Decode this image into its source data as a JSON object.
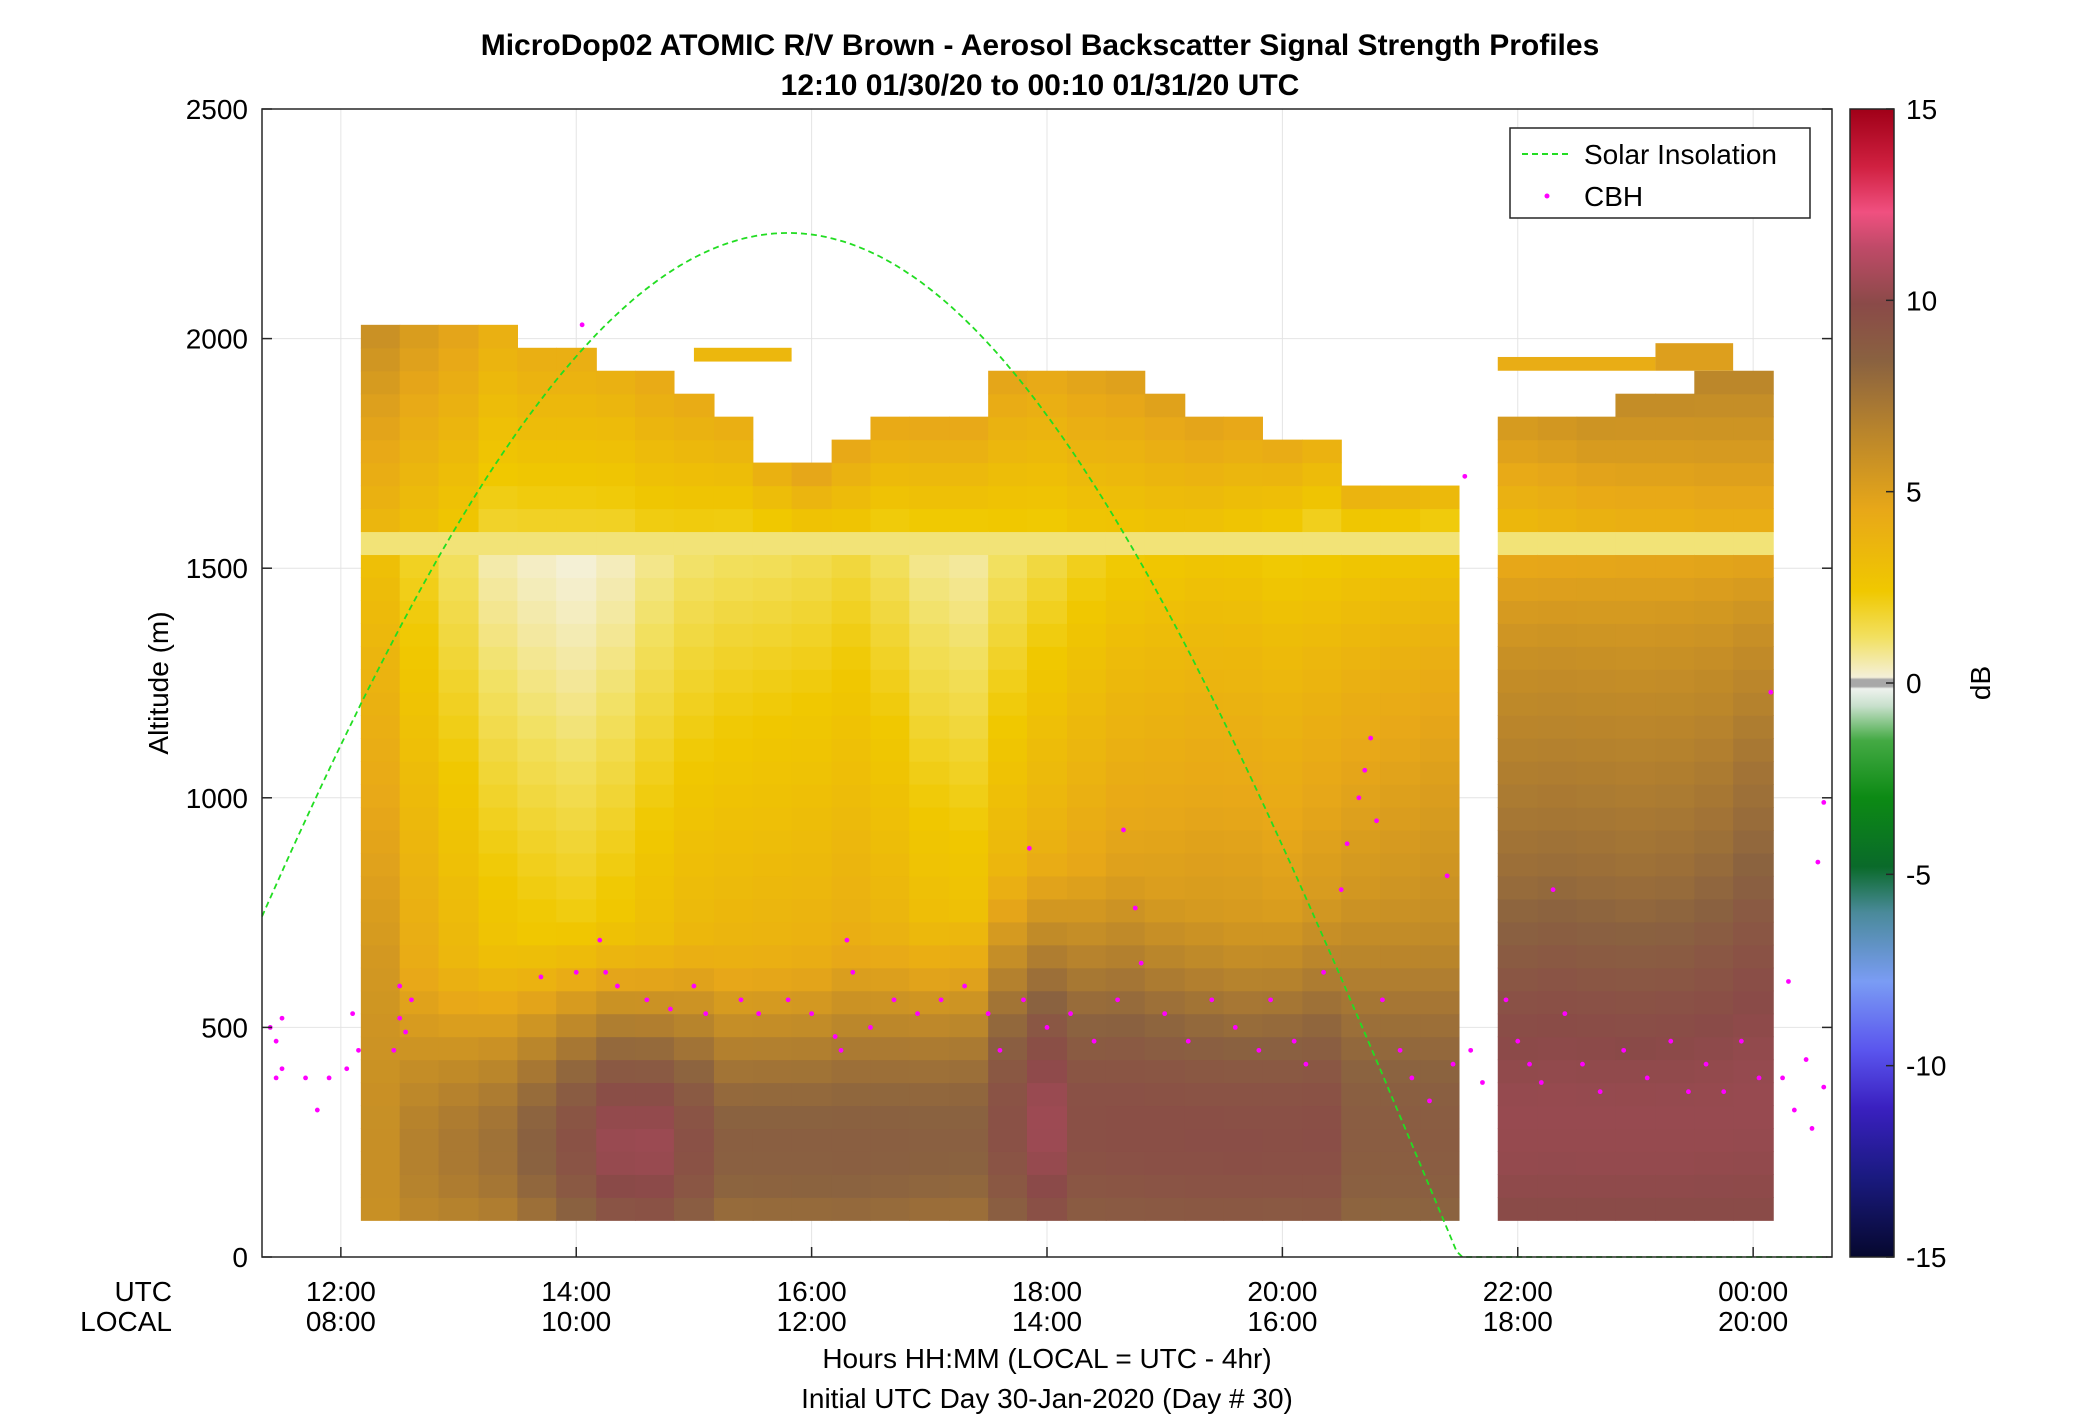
{
  "chart_data": {
    "type": "heatmap",
    "title": "MicroDop02 ATOMIC R/V Brown - Aerosol Backscatter Signal Strength Profiles",
    "subtitle": "12:10 01/30/20 to 00:10 01/31/20  UTC",
    "ylabel": "Altitude (m)",
    "xlabel": "Hours HH:MM  (LOCAL = UTC - 4hr)",
    "xlabel2": "Initial UTC Day 30-Jan-2020 (Day # 30)",
    "x_row_labels": [
      "UTC",
      "LOCAL"
    ],
    "xlim_hours": [
      11.33,
      24.67
    ],
    "ylim": [
      0,
      2500
    ],
    "grid": true,
    "y_ticks": [
      0,
      500,
      1000,
      1500,
      2000,
      2500
    ],
    "x_ticks": [
      {
        "hour": 12,
        "utc": "12:00",
        "local": "08:00"
      },
      {
        "hour": 14,
        "utc": "14:00",
        "local": "10:00"
      },
      {
        "hour": 16,
        "utc": "16:00",
        "local": "12:00"
      },
      {
        "hour": 18,
        "utc": "18:00",
        "local": "14:00"
      },
      {
        "hour": 20,
        "utc": "20:00",
        "local": "16:00"
      },
      {
        "hour": 22,
        "utc": "22:00",
        "local": "18:00"
      },
      {
        "hour": 24,
        "utc": "00:00",
        "local": "20:00"
      }
    ],
    "colorbar": {
      "label": "dB",
      "range": [
        -15,
        15
      ],
      "ticks": [
        -15,
        -10,
        -5,
        0,
        5,
        10,
        15
      ]
    },
    "legend": {
      "position": "top-right",
      "entries": [
        {
          "name": "Solar Insolation",
          "style": "dashed-line",
          "color": "#22dd22"
        },
        {
          "name": "CBH",
          "style": "dot",
          "color": "#ff00ff"
        }
      ]
    },
    "range_gate_bottom_m": 80,
    "range_gate_m": 50,
    "time_bins": [
      {
        "t0": 12.17,
        "t1": 12.5,
        "top": 2000,
        "sfc": 6,
        "pblh": 620,
        "lo": 3,
        "layer": 2.5
      },
      {
        "t0": 12.5,
        "t1": 12.83,
        "top": 2030,
        "sfc": 7,
        "pblh": 640,
        "lo": 1.8,
        "layer": 2.0
      },
      {
        "t0": 12.83,
        "t1": 13.17,
        "top": 2030,
        "sfc": 7.5,
        "pblh": 660,
        "lo": 1.0,
        "layer": 1.5
      },
      {
        "t0": 13.17,
        "t1": 13.5,
        "top": 2030,
        "sfc": 8,
        "pblh": 680,
        "lo": 0.3,
        "layer": 0.8
      },
      {
        "t0": 13.5,
        "t1": 13.83,
        "top": 1960,
        "sfc": 9,
        "pblh": 700,
        "lo": 0.0,
        "layer": 0.8
      },
      {
        "t0": 13.83,
        "t1": 14.17,
        "top": 1960,
        "sfc": 10,
        "pblh": 720,
        "lo": -0.2,
        "layer": 0.8
      },
      {
        "t0": 14.17,
        "t1": 14.5,
        "top": 1930,
        "sfc": 11,
        "pblh": 720,
        "lo": 0.1,
        "layer": 0.8
      },
      {
        "t0": 14.5,
        "t1": 14.83,
        "top": 1900,
        "sfc": 11,
        "pblh": 700,
        "lo": 0.6,
        "layer": 1.0
      },
      {
        "t0": 14.83,
        "t1": 15.17,
        "top": 1860,
        "sfc": 10,
        "pblh": 700,
        "lo": 1.0,
        "layer": 1.0
      },
      {
        "t0": 15.17,
        "t1": 15.5,
        "top": 1820,
        "sfc": 9,
        "pblh": 680,
        "lo": 1.2,
        "layer": 0.9
      },
      {
        "t0": 15.5,
        "t1": 15.83,
        "top": 1720,
        "sfc": 9,
        "pblh": 680,
        "lo": 1.3,
        "layer": 0.8
      },
      {
        "t0": 15.83,
        "t1": 16.17,
        "top": 1690,
        "sfc": 9,
        "pblh": 680,
        "lo": 1.4,
        "layer": 1.0
      },
      {
        "t0": 16.17,
        "t1": 16.5,
        "top": 1760,
        "sfc": 9,
        "pblh": 700,
        "lo": 1.6,
        "layer": 1.2
      },
      {
        "t0": 16.5,
        "t1": 16.83,
        "top": 1790,
        "sfc": 9,
        "pblh": 720,
        "lo": 1.2,
        "layer": 0.9
      },
      {
        "t0": 16.83,
        "t1": 17.17,
        "top": 1790,
        "sfc": 9,
        "pblh": 740,
        "lo": 0.6,
        "layer": 1.0
      },
      {
        "t0": 17.17,
        "t1": 17.5,
        "top": 1790,
        "sfc": 9,
        "pblh": 760,
        "lo": 0.4,
        "layer": 1.0
      },
      {
        "t0": 17.5,
        "t1": 17.83,
        "top": 1890,
        "sfc": 10,
        "pblh": 860,
        "lo": 1.0,
        "layer": 1.2
      },
      {
        "t0": 17.83,
        "t1": 18.17,
        "top": 1920,
        "sfc": 11,
        "pblh": 880,
        "lo": 1.5,
        "layer": 1.2
      },
      {
        "t0": 18.17,
        "t1": 18.5,
        "top": 1920,
        "sfc": 10,
        "pblh": 860,
        "lo": 2.0,
        "layer": 1.5
      },
      {
        "t0": 18.5,
        "t1": 18.83,
        "top": 1890,
        "sfc": 10,
        "pblh": 850,
        "lo": 2.4,
        "layer": 1.5
      },
      {
        "t0": 18.83,
        "t1": 19.17,
        "top": 1860,
        "sfc": 10,
        "pblh": 800,
        "lo": 2.6,
        "layer": 1.6
      },
      {
        "t0": 19.17,
        "t1": 19.5,
        "top": 1830,
        "sfc": 10,
        "pblh": 760,
        "lo": 2.8,
        "layer": 1.6
      },
      {
        "t0": 19.5,
        "t1": 19.83,
        "top": 1830,
        "sfc": 10,
        "pblh": 740,
        "lo": 2.8,
        "layer": 1.4
      },
      {
        "t0": 19.83,
        "t1": 20.17,
        "top": 1760,
        "sfc": 10,
        "pblh": 760,
        "lo": 2.6,
        "layer": 1.0
      },
      {
        "t0": 20.17,
        "t1": 20.5,
        "top": 1760,
        "sfc": 10,
        "pblh": 780,
        "lo": 2.8,
        "layer": 0.6
      },
      {
        "t0": 20.5,
        "t1": 20.83,
        "top": 1660,
        "sfc": 9,
        "pblh": 800,
        "lo": 3.0,
        "layer": 0.5
      },
      {
        "t0": 20.83,
        "t1": 21.17,
        "top": 1660,
        "sfc": 9,
        "pblh": 780,
        "lo": 3.2,
        "layer": 0.4
      },
      {
        "t0": 21.17,
        "t1": 21.5,
        "top": 1660,
        "sfc": 9,
        "pblh": 760,
        "lo": 3.4,
        "layer": 0.2
      },
      {
        "t0": 21.83,
        "t1": 22.17,
        "top": 1830,
        "sfc": 10.5,
        "pblh": 900,
        "lo": 5,
        "layer": 2.2
      },
      {
        "t0": 22.17,
        "t1": 22.5,
        "top": 1830,
        "sfc": 10.5,
        "pblh": 920,
        "lo": 5,
        "layer": 2.4
      },
      {
        "t0": 22.5,
        "t1": 22.83,
        "top": 1830,
        "sfc": 10.5,
        "pblh": 900,
        "lo": 5,
        "layer": 2.6
      },
      {
        "t0": 22.83,
        "t1": 23.17,
        "top": 1860,
        "sfc": 10.5,
        "pblh": 880,
        "lo": 5,
        "layer": 2.8
      },
      {
        "t0": 23.17,
        "t1": 23.5,
        "top": 1860,
        "sfc": 10.5,
        "pblh": 900,
        "lo": 5,
        "layer": 2.8
      },
      {
        "t0": 23.5,
        "t1": 23.83,
        "top": 1890,
        "sfc": 10.5,
        "pblh": 950,
        "lo": 5,
        "layer": 3.0
      },
      {
        "t0": 23.83,
        "t1": 24.17,
        "top": 1890,
        "sfc": 10.5,
        "pblh": 1050,
        "lo": 5,
        "layer": 3.0
      }
    ],
    "elevated_segments": [
      {
        "t0": 15.0,
        "t1": 15.83,
        "alt0": 1950,
        "alt1": 1980,
        "value": 3.5
      },
      {
        "t0": 21.83,
        "t1": 23.17,
        "alt0": 1930,
        "alt1": 1960,
        "value": 4.2
      },
      {
        "t0": 23.17,
        "t1": 23.83,
        "alt0": 1930,
        "alt1": 1990,
        "value": 5
      }
    ],
    "solar_insolation": {
      "rise_hour": 10.1,
      "peak_hour": 15.83,
      "set_hour": 21.5,
      "peak_altitude": 2230
    },
    "cbh_points": [
      {
        "t": 11.4,
        "alt": 500
      },
      {
        "t": 11.45,
        "alt": 470
      },
      {
        "t": 11.5,
        "alt": 520
      },
      {
        "t": 11.5,
        "alt": 410
      },
      {
        "t": 11.45,
        "alt": 390
      },
      {
        "t": 11.7,
        "alt": 390
      },
      {
        "t": 11.8,
        "alt": 320
      },
      {
        "t": 11.9,
        "alt": 390
      },
      {
        "t": 12.05,
        "alt": 410
      },
      {
        "t": 12.1,
        "alt": 530
      },
      {
        "t": 12.15,
        "alt": 450
      },
      {
        "t": 12.5,
        "alt": 520
      },
      {
        "t": 12.55,
        "alt": 490
      },
      {
        "t": 12.6,
        "alt": 560
      },
      {
        "t": 12.45,
        "alt": 450
      },
      {
        "t": 12.5,
        "alt": 590
      },
      {
        "t": 14.05,
        "alt": 2030
      },
      {
        "t": 14.0,
        "alt": 620
      },
      {
        "t": 13.7,
        "alt": 610
      },
      {
        "t": 14.2,
        "alt": 690
      },
      {
        "t": 14.25,
        "alt": 620
      },
      {
        "t": 14.35,
        "alt": 590
      },
      {
        "t": 14.6,
        "alt": 560
      },
      {
        "t": 14.8,
        "alt": 540
      },
      {
        "t": 15.0,
        "alt": 590
      },
      {
        "t": 15.1,
        "alt": 530
      },
      {
        "t": 15.4,
        "alt": 560
      },
      {
        "t": 15.55,
        "alt": 530
      },
      {
        "t": 15.8,
        "alt": 560
      },
      {
        "t": 16.0,
        "alt": 530
      },
      {
        "t": 16.2,
        "alt": 480
      },
      {
        "t": 16.3,
        "alt": 690
      },
      {
        "t": 16.35,
        "alt": 620
      },
      {
        "t": 16.25,
        "alt": 450
      },
      {
        "t": 16.5,
        "alt": 500
      },
      {
        "t": 16.7,
        "alt": 560
      },
      {
        "t": 16.9,
        "alt": 530
      },
      {
        "t": 17.1,
        "alt": 560
      },
      {
        "t": 17.3,
        "alt": 590
      },
      {
        "t": 17.5,
        "alt": 530
      },
      {
        "t": 17.6,
        "alt": 450
      },
      {
        "t": 17.85,
        "alt": 890
      },
      {
        "t": 17.8,
        "alt": 560
      },
      {
        "t": 18.0,
        "alt": 500
      },
      {
        "t": 18.2,
        "alt": 530
      },
      {
        "t": 18.4,
        "alt": 470
      },
      {
        "t": 18.6,
        "alt": 560
      },
      {
        "t": 18.65,
        "alt": 930
      },
      {
        "t": 18.75,
        "alt": 760
      },
      {
        "t": 18.8,
        "alt": 640
      },
      {
        "t": 19.0,
        "alt": 530
      },
      {
        "t": 19.2,
        "alt": 470
      },
      {
        "t": 19.4,
        "alt": 560
      },
      {
        "t": 19.6,
        "alt": 500
      },
      {
        "t": 19.8,
        "alt": 450
      },
      {
        "t": 19.9,
        "alt": 560
      },
      {
        "t": 20.1,
        "alt": 470
      },
      {
        "t": 20.2,
        "alt": 420
      },
      {
        "t": 20.35,
        "alt": 620
      },
      {
        "t": 20.5,
        "alt": 800
      },
      {
        "t": 20.55,
        "alt": 900
      },
      {
        "t": 20.65,
        "alt": 1000
      },
      {
        "t": 20.7,
        "alt": 1060
      },
      {
        "t": 20.75,
        "alt": 1130
      },
      {
        "t": 20.8,
        "alt": 950
      },
      {
        "t": 20.85,
        "alt": 560
      },
      {
        "t": 21.0,
        "alt": 450
      },
      {
        "t": 21.1,
        "alt": 390
      },
      {
        "t": 21.25,
        "alt": 340
      },
      {
        "t": 21.4,
        "alt": 830
      },
      {
        "t": 21.45,
        "alt": 420
      },
      {
        "t": 21.55,
        "alt": 1700
      },
      {
        "t": 21.6,
        "alt": 450
      },
      {
        "t": 21.7,
        "alt": 380
      },
      {
        "t": 21.9,
        "alt": 560
      },
      {
        "t": 22.0,
        "alt": 470
      },
      {
        "t": 22.1,
        "alt": 420
      },
      {
        "t": 22.2,
        "alt": 380
      },
      {
        "t": 22.3,
        "alt": 800
      },
      {
        "t": 22.4,
        "alt": 530
      },
      {
        "t": 22.55,
        "alt": 420
      },
      {
        "t": 22.7,
        "alt": 360
      },
      {
        "t": 22.9,
        "alt": 450
      },
      {
        "t": 23.1,
        "alt": 390
      },
      {
        "t": 23.3,
        "alt": 470
      },
      {
        "t": 23.45,
        "alt": 360
      },
      {
        "t": 23.6,
        "alt": 420
      },
      {
        "t": 23.75,
        "alt": 360
      },
      {
        "t": 23.9,
        "alt": 470
      },
      {
        "t": 24.05,
        "alt": 390
      },
      {
        "t": 24.15,
        "alt": 1230
      },
      {
        "t": 24.25,
        "alt": 390
      },
      {
        "t": 24.35,
        "alt": 320
      },
      {
        "t": 24.45,
        "alt": 430
      },
      {
        "t": 24.55,
        "alt": 860
      },
      {
        "t": 24.6,
        "alt": 990
      },
      {
        "t": 24.6,
        "alt": 370
      },
      {
        "t": 24.5,
        "alt": 280
      },
      {
        "t": 24.3,
        "alt": 600
      }
    ]
  }
}
